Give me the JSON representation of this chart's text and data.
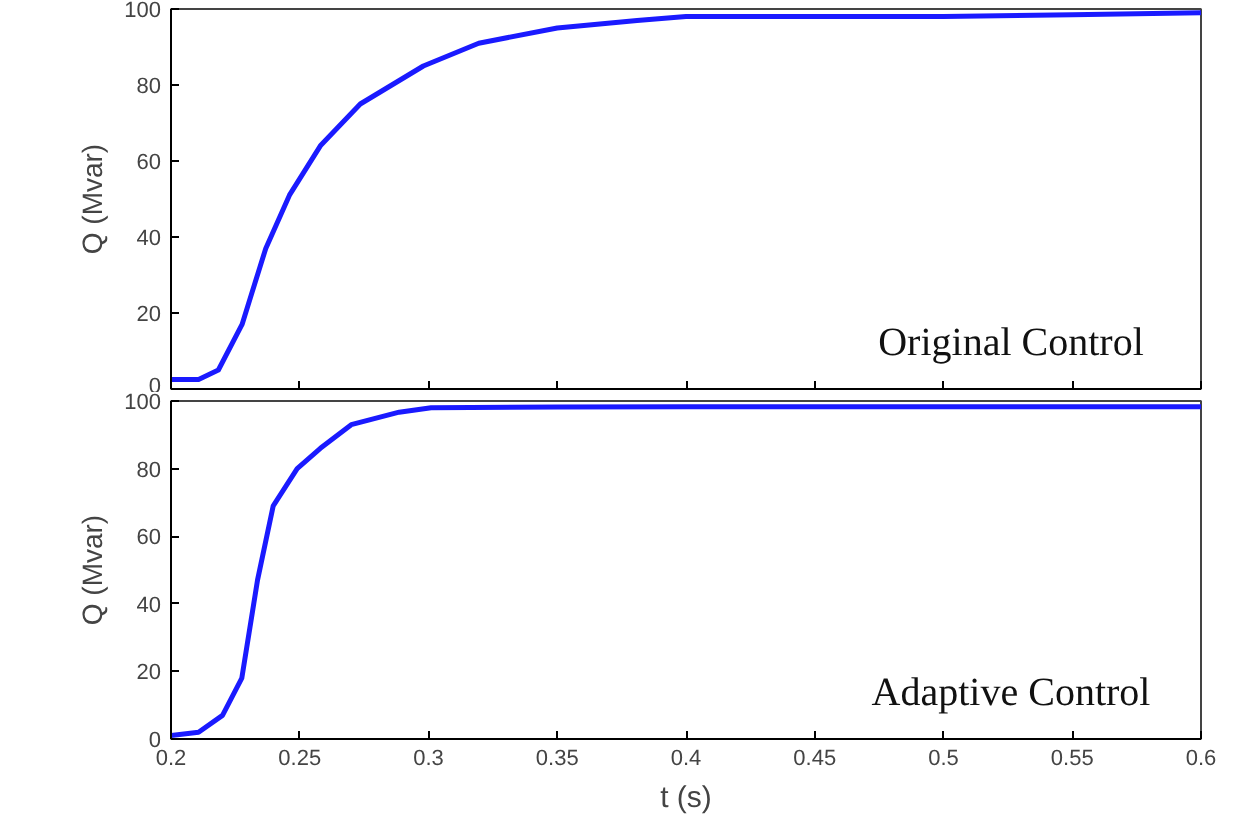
{
  "chart_data": [
    {
      "type": "line",
      "ylabel": "Q (Mvar)",
      "annotations": [
        "Original Control"
      ],
      "xlim": [
        0.2,
        0.6
      ],
      "xticks": [
        0.2,
        0.25,
        0.3,
        0.35,
        0.4,
        0.45,
        0.5,
        0.55,
        0.6
      ],
      "ylim": [
        0,
        100
      ],
      "yticks": [
        0,
        20,
        40,
        60,
        80,
        100
      ],
      "tick_labels": "y",
      "grid": false,
      "marker": "none",
      "line_style": "solid",
      "series": [
        {
          "color": "#1a1aff",
          "x": [
            0.2,
            0.2107,
            0.2184,
            0.2276,
            0.2368,
            0.246,
            0.258,
            0.2735,
            0.298,
            0.3195,
            0.35,
            0.381,
            0.4,
            0.45,
            0.5,
            0.55,
            0.6
          ],
          "values": [
            2.5,
            2.5,
            5,
            17,
            37,
            51,
            64,
            75,
            85,
            91,
            95,
            97,
            98,
            98,
            98,
            98.5,
            99
          ]
        }
      ]
    },
    {
      "type": "line",
      "xlabel": "t (s)",
      "ylabel": "Q (Mvar)",
      "annotations": [
        "Adaptive Control"
      ],
      "xlim": [
        0.2,
        0.6
      ],
      "xticks": [
        0.2,
        0.25,
        0.3,
        0.35,
        0.4,
        0.45,
        0.5,
        0.55,
        0.6
      ],
      "ylim": [
        0,
        100
      ],
      "yticks": [
        0,
        20,
        40,
        60,
        80,
        100
      ],
      "grid": false,
      "marker": "none",
      "line_style": "solid",
      "series": [
        {
          "color": "#1a1aff",
          "x": [
            0.2,
            0.2107,
            0.22,
            0.2275,
            0.2336,
            0.2397,
            0.249,
            0.258,
            0.27,
            0.2886,
            0.301,
            0.35,
            0.4,
            0.45,
            0.5,
            0.55,
            0.6
          ],
          "values": [
            1,
            2,
            7,
            18,
            47,
            69,
            80,
            86,
            93,
            96.7,
            98,
            98.2,
            98.3,
            98.3,
            98.3,
            98.3,
            98.3
          ]
        }
      ]
    }
  ]
}
